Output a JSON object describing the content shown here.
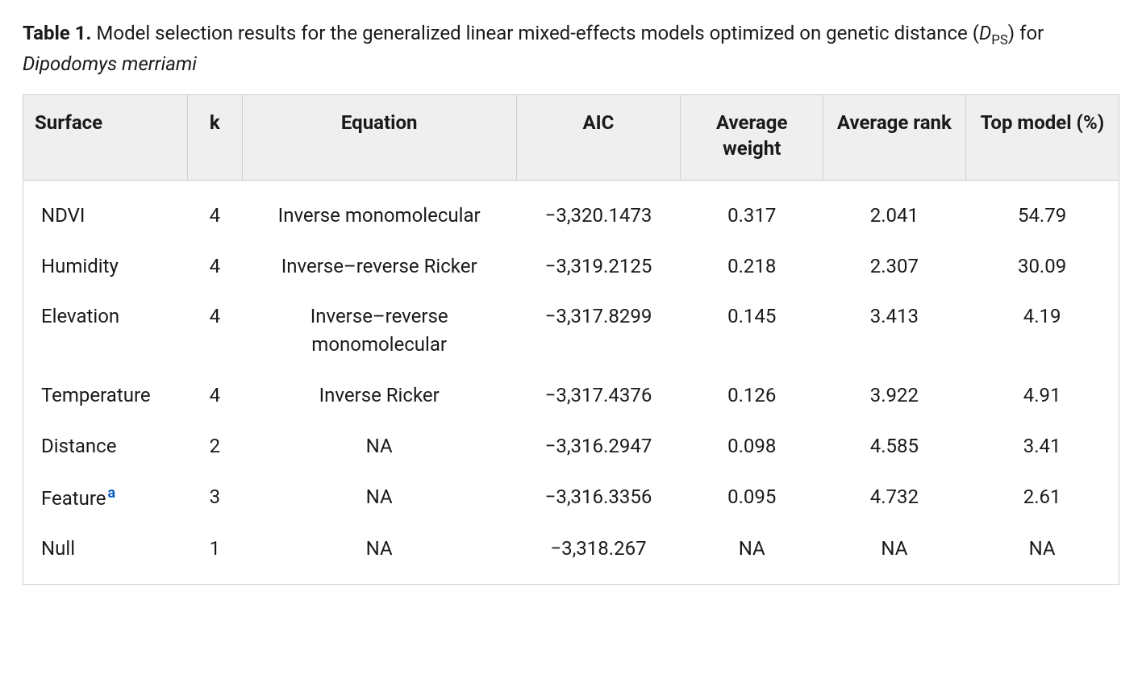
{
  "caption": {
    "label": "Table 1.",
    "text_before_dps": " Model selection results for the generalized linear mixed-effects models optimized on genetic distance (",
    "dps_sym": "D",
    "dps_sub": "PS",
    "text_after_dps": ") for ",
    "species": "Dipodomys merriami"
  },
  "columns": [
    {
      "key": "surface",
      "label": "Surface",
      "align": "left"
    },
    {
      "key": "k",
      "label": "k",
      "align": "center"
    },
    {
      "key": "equation",
      "label": "Equation",
      "align": "center"
    },
    {
      "key": "aic",
      "label": "AIC",
      "align": "center"
    },
    {
      "key": "avg_weight",
      "label": "Average weight",
      "align": "center"
    },
    {
      "key": "avg_rank",
      "label": "Average rank",
      "align": "center"
    },
    {
      "key": "top_model",
      "label": "Top model (%)",
      "align": "center"
    }
  ],
  "rows": [
    {
      "surface": "NDVI",
      "footnote": null,
      "k": "4",
      "equation": "Inverse monomolecular",
      "aic": "−3,320.1473",
      "avg_weight": "0.317",
      "avg_rank": "2.041",
      "top_model": "54.79"
    },
    {
      "surface": "Humidity",
      "footnote": null,
      "k": "4",
      "equation": "Inverse–reverse Ricker",
      "aic": "−3,319.2125",
      "avg_weight": "0.218",
      "avg_rank": "2.307",
      "top_model": "30.09"
    },
    {
      "surface": "Elevation",
      "footnote": null,
      "k": "4",
      "equation": "Inverse–reverse monomolecular",
      "aic": "−3,317.8299",
      "avg_weight": "0.145",
      "avg_rank": "3.413",
      "top_model": "4.19"
    },
    {
      "surface": "Temperature",
      "footnote": null,
      "k": "4",
      "equation": "Inverse Ricker",
      "aic": "−3,317.4376",
      "avg_weight": "0.126",
      "avg_rank": "3.922",
      "top_model": "4.91"
    },
    {
      "surface": "Distance",
      "footnote": null,
      "k": "2",
      "equation": "NA",
      "aic": "−3,316.2947",
      "avg_weight": "0.098",
      "avg_rank": "4.585",
      "top_model": "3.41"
    },
    {
      "surface": "Feature",
      "footnote": "a",
      "k": "3",
      "equation": "NA",
      "aic": "−3,316.3356",
      "avg_weight": "0.095",
      "avg_rank": "4.732",
      "top_model": "2.61"
    },
    {
      "surface": "Null",
      "footnote": null,
      "k": "1",
      "equation": "NA",
      "aic": "−3,318.267",
      "avg_weight": "NA",
      "avg_rank": "NA",
      "top_model": "NA"
    }
  ],
  "style": {
    "background_color": "#ffffff",
    "header_bg": "#efefef",
    "border_color": "#cfcfcf",
    "text_color": "#1a1a1a",
    "footnote_color": "#0b5fc0",
    "font_family": "-apple-system, Segoe UI, Roboto, Helvetica Neue, Arial, sans-serif",
    "base_fontsize_pt": 18
  }
}
